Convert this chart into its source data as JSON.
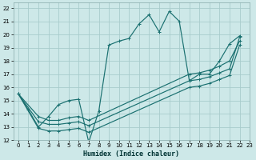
{
  "xlabel": "Humidex (Indice chaleur)",
  "bg_color": "#cde8e8",
  "grid_color": "#a8cccc",
  "line_color": "#1a7070",
  "xlim": [
    -0.5,
    23
  ],
  "ylim": [
    12,
    22.4
  ],
  "xticks": [
    0,
    1,
    2,
    3,
    4,
    5,
    6,
    7,
    8,
    9,
    10,
    11,
    12,
    13,
    14,
    15,
    16,
    17,
    18,
    19,
    20,
    21,
    22,
    23
  ],
  "yticks": [
    12,
    13,
    14,
    15,
    16,
    17,
    18,
    19,
    20,
    21,
    22
  ],
  "line1_x": [
    0,
    1,
    2,
    3,
    4,
    5,
    6,
    7,
    8,
    9,
    10,
    11,
    12,
    13,
    14,
    15,
    16,
    17,
    18,
    19,
    20,
    21,
    22
  ],
  "line1_y": [
    15.5,
    14.3,
    13.0,
    13.8,
    14.7,
    15.0,
    15.1,
    11.85,
    14.2,
    19.2,
    19.5,
    19.7,
    20.8,
    21.5,
    20.2,
    21.75,
    21.0,
    16.5,
    17.0,
    17.0,
    18.0,
    19.3,
    19.9
  ],
  "line2_x": [
    0,
    2,
    3,
    4,
    5,
    6,
    7,
    17,
    18,
    19,
    20,
    21,
    22
  ],
  "line2_y": [
    15.5,
    13.8,
    13.5,
    13.5,
    13.7,
    13.8,
    13.5,
    17.0,
    17.1,
    17.3,
    17.6,
    18.0,
    19.5
  ],
  "line3_x": [
    0,
    2,
    3,
    4,
    5,
    6,
    7,
    17,
    18,
    19,
    20,
    21,
    22
  ],
  "line3_y": [
    15.5,
    13.4,
    13.2,
    13.2,
    13.3,
    13.4,
    13.1,
    16.5,
    16.6,
    16.8,
    17.1,
    17.4,
    19.8
  ],
  "line4_x": [
    0,
    2,
    3,
    4,
    5,
    6,
    7,
    17,
    18,
    19,
    20,
    21,
    22
  ],
  "line4_y": [
    15.5,
    12.9,
    12.7,
    12.7,
    12.8,
    12.9,
    12.6,
    16.0,
    16.1,
    16.3,
    16.6,
    16.9,
    19.2
  ]
}
